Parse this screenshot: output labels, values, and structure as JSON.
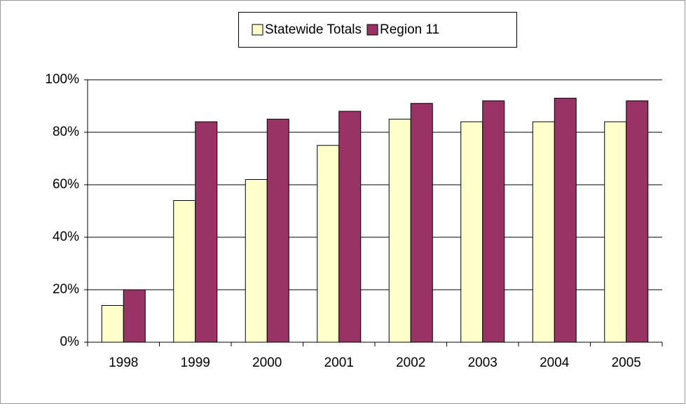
{
  "chart_data": {
    "type": "bar",
    "categories": [
      "1998",
      "1999",
      "2000",
      "2001",
      "2002",
      "2003",
      "2004",
      "2005"
    ],
    "series": [
      {
        "name": "Statewide Totals",
        "color": "#ffffcc",
        "values": [
          14,
          54,
          62,
          75,
          85,
          84,
          84,
          84
        ]
      },
      {
        "name": "Region 11",
        "color": "#993366",
        "values": [
          20,
          84,
          85,
          88,
          91,
          92,
          93,
          92
        ]
      }
    ],
    "ylim": [
      0,
      100
    ],
    "yticks": [
      {
        "value": 0,
        "label": "0%"
      },
      {
        "value": 20,
        "label": "20%"
      },
      {
        "value": 40,
        "label": "40%"
      },
      {
        "value": 60,
        "label": "60%"
      },
      {
        "value": 80,
        "label": "80%"
      },
      {
        "value": 100,
        "label": "100%"
      }
    ],
    "grid": true,
    "legend": "top"
  }
}
